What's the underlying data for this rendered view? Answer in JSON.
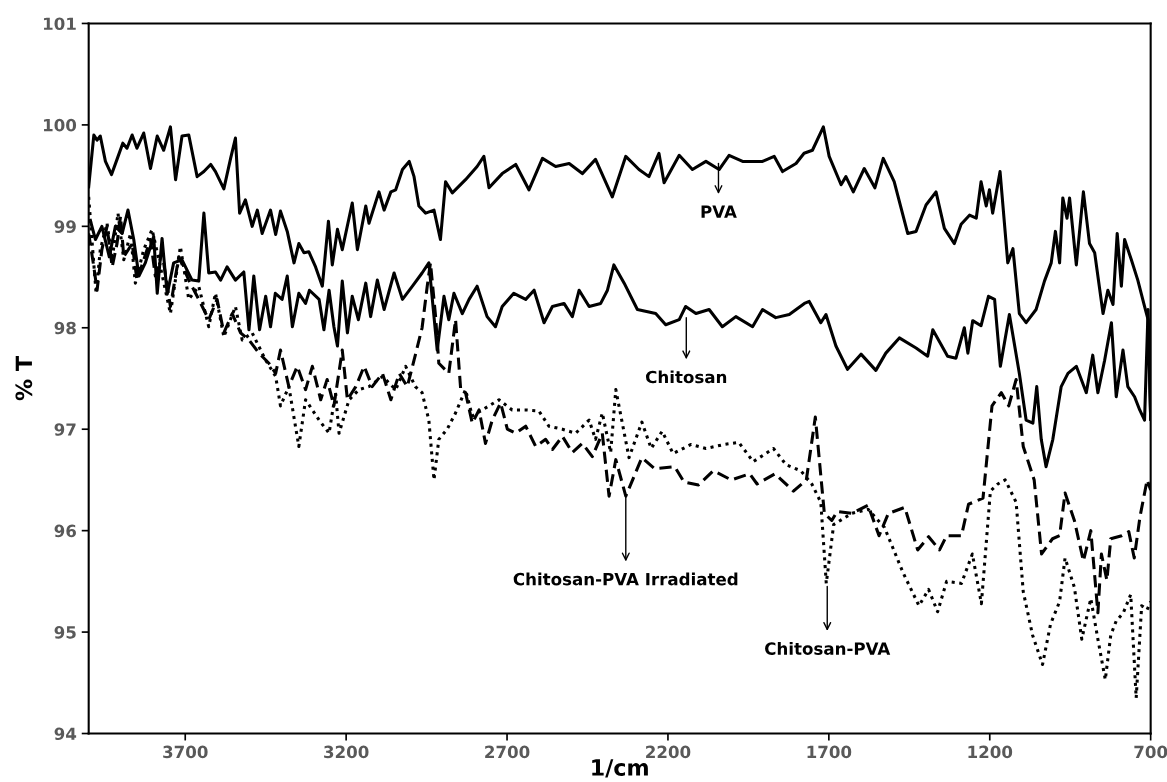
{
  "chart_data": {
    "type": "line",
    "xlabel": "1/cm",
    "ylabel": "% T",
    "xlim": [
      4000,
      700
    ],
    "xticks": [
      3700,
      3200,
      2700,
      2200,
      1700,
      1200,
      700
    ],
    "ylim": [
      94,
      101
    ],
    "yticks": [
      94,
      95,
      96,
      97,
      98,
      99,
      100,
      101
    ],
    "grid": false,
    "marker": "none",
    "series": [
      {
        "color": "#000000",
        "line_style": "solid",
        "x": [
          4000,
          3984,
          3974,
          3964,
          3948,
          3929,
          3912,
          3894,
          3881,
          3865,
          3850,
          3829,
          3808,
          3787,
          3767,
          3746,
          3730,
          3710,
          3689,
          3663,
          3642,
          3621,
          3606,
          3580,
          3559,
          3544,
          3531,
          3513,
          3492,
          3476,
          3461,
          3435,
          3419,
          3404,
          3383,
          3362,
          3347,
          3331,
          3316,
          3295,
          3274,
          3255,
          3243,
          3227,
          3212,
          3181,
          3165,
          3139,
          3129,
          3098,
          3082,
          3061,
          3046,
          3025,
          3004,
          2989,
          2974,
          2953,
          2927,
          2907,
          2891,
          2870,
          2829,
          2793,
          2772,
          2756,
          2715,
          2673,
          2632,
          2590,
          2549,
          2507,
          2466,
          2425,
          2373,
          2331,
          2290,
          2259,
          2228,
          2212,
          2165,
          2124,
          2082,
          2041,
          2010,
          1968,
          1906,
          1870,
          1844,
          1802,
          1777,
          1751,
          1717,
          1699,
          1662,
          1647,
          1624,
          1590,
          1557,
          1531,
          1497,
          1455,
          1429,
          1398,
          1367,
          1341,
          1310,
          1289,
          1263,
          1242,
          1227,
          1211,
          1201,
          1191,
          1168,
          1144,
          1128,
          1108,
          1087,
          1056,
          1030,
          1009,
          996,
          983,
          973,
          960,
          952,
          931,
          909,
          890,
          874,
          848,
          833,
          817,
          804,
          791,
          781,
          760,
          740,
          719,
          708,
          700
        ],
        "values": [
          99.39,
          99.9,
          99.85,
          99.89,
          99.64,
          99.51,
          99.66,
          99.82,
          99.77,
          99.9,
          99.77,
          99.92,
          99.57,
          99.89,
          99.75,
          99.98,
          99.46,
          99.89,
          99.9,
          99.49,
          99.54,
          99.61,
          99.54,
          99.37,
          99.67,
          99.87,
          99.13,
          99.26,
          99.0,
          99.16,
          98.93,
          99.16,
          98.92,
          99.15,
          98.95,
          98.64,
          98.83,
          98.74,
          98.75,
          98.6,
          98.41,
          99.05,
          98.62,
          98.97,
          98.77,
          99.23,
          98.77,
          99.2,
          99.03,
          99.34,
          99.16,
          99.34,
          99.36,
          99.56,
          99.64,
          99.49,
          99.2,
          99.13,
          99.16,
          98.87,
          99.44,
          99.33,
          99.46,
          99.59,
          99.69,
          99.38,
          99.52,
          99.61,
          99.36,
          99.67,
          99.59,
          99.62,
          99.52,
          99.66,
          99.29,
          99.69,
          99.56,
          99.49,
          99.72,
          99.43,
          99.7,
          99.56,
          99.64,
          99.56,
          99.7,
          99.64,
          99.64,
          99.69,
          99.54,
          99.62,
          99.72,
          99.75,
          99.98,
          99.69,
          99.41,
          99.49,
          99.34,
          99.57,
          99.38,
          99.67,
          99.44,
          98.93,
          98.95,
          99.21,
          99.34,
          98.98,
          98.83,
          99.02,
          99.11,
          99.08,
          99.44,
          99.2,
          99.36,
          99.13,
          99.54,
          98.64,
          98.78,
          98.14,
          98.05,
          98.18,
          98.46,
          98.64,
          98.95,
          98.64,
          99.28,
          99.08,
          99.28,
          98.62,
          99.34,
          98.83,
          98.74,
          98.14,
          98.37,
          98.23,
          98.93,
          98.41,
          98.87,
          98.67,
          98.47,
          98.21,
          98.08,
          97.1
        ]
      },
      {
        "color": "#000000",
        "line_style": "solid",
        "x": [
          3995,
          3979,
          3959,
          3936,
          3917,
          3896,
          3878,
          3860,
          3844,
          3824,
          3798,
          3787,
          3772,
          3756,
          3736,
          3710,
          3679,
          3658,
          3642,
          3627,
          3606,
          3590,
          3570,
          3544,
          3518,
          3502,
          3487,
          3469,
          3450,
          3435,
          3420,
          3399,
          3383,
          3367,
          3347,
          3326,
          3314,
          3284,
          3269,
          3253,
          3238,
          3227,
          3212,
          3196,
          3181,
          3162,
          3139,
          3124,
          3103,
          3082,
          3051,
          3025,
          2994,
          2964,
          2943,
          2917,
          2896,
          2881,
          2865,
          2839,
          2818,
          2793,
          2762,
          2736,
          2715,
          2679,
          2642,
          2616,
          2585,
          2559,
          2523,
          2497,
          2476,
          2445,
          2409,
          2388,
          2368,
          2336,
          2295,
          2238,
          2207,
          2165,
          2145,
          2113,
          2072,
          2031,
          1989,
          1937,
          1906,
          1865,
          1823,
          1776,
          1761,
          1725,
          1709,
          1678,
          1642,
          1600,
          1554,
          1523,
          1481,
          1429,
          1393,
          1377,
          1331,
          1305,
          1279,
          1268,
          1253,
          1227,
          1204,
          1185,
          1167,
          1139,
          1108,
          1087,
          1066,
          1054,
          1040,
          1025,
          1004,
          978,
          957,
          931,
          900,
          880,
          864,
          843,
          822,
          807,
          786,
          771,
          750,
          734,
          719,
          708,
          700
        ],
        "values": [
          99.06,
          98.87,
          99.0,
          98.7,
          99.0,
          98.93,
          99.16,
          98.87,
          98.51,
          98.64,
          98.9,
          98.34,
          98.88,
          98.33,
          98.64,
          98.67,
          98.47,
          98.46,
          99.13,
          98.54,
          98.55,
          98.47,
          98.6,
          98.47,
          98.55,
          97.98,
          98.51,
          97.98,
          98.31,
          98.01,
          98.34,
          98.28,
          98.51,
          98.01,
          98.34,
          98.24,
          98.37,
          98.28,
          97.98,
          98.37,
          98.01,
          97.82,
          98.46,
          97.95,
          98.31,
          98.08,
          98.44,
          98.11,
          98.47,
          98.18,
          98.54,
          98.28,
          98.41,
          98.54,
          98.64,
          97.78,
          98.31,
          98.08,
          98.34,
          98.14,
          98.28,
          98.41,
          98.11,
          98.01,
          98.21,
          98.34,
          98.28,
          98.37,
          98.05,
          98.21,
          98.24,
          98.11,
          98.37,
          98.21,
          98.24,
          98.37,
          98.62,
          98.44,
          98.18,
          98.14,
          98.03,
          98.08,
          98.21,
          98.14,
          98.18,
          98.01,
          98.11,
          98.01,
          98.18,
          98.1,
          98.13,
          98.24,
          98.26,
          98.05,
          98.13,
          97.82,
          97.59,
          97.74,
          97.58,
          97.75,
          97.9,
          97.8,
          97.72,
          97.98,
          97.72,
          97.7,
          98.0,
          97.75,
          98.07,
          98.02,
          98.31,
          98.28,
          97.62,
          98.13,
          97.55,
          97.09,
          97.06,
          97.42,
          96.9,
          96.63,
          96.9,
          97.42,
          97.55,
          97.62,
          97.36,
          97.73,
          97.36,
          97.68,
          98.05,
          97.32,
          97.78,
          97.42,
          97.32,
          97.19,
          97.09,
          98.18,
          97.1
        ]
      },
      {
        "color": "#000000",
        "line_style": "dashed",
        "x": [
          4000,
          3984,
          3974,
          3959,
          3943,
          3927,
          3912,
          3901,
          3891,
          3865,
          3850,
          3829,
          3808,
          3793,
          3772,
          3746,
          3720,
          3689,
          3658,
          3627,
          3601,
          3580,
          3554,
          3528,
          3502,
          3471,
          3440,
          3419,
          3404,
          3378,
          3352,
          3326,
          3305,
          3279,
          3259,
          3238,
          3212,
          3196,
          3170,
          3144,
          3119,
          3087,
          3061,
          3035,
          3010,
          2989,
          2964,
          2948,
          2938,
          2922,
          2912,
          2881,
          2860,
          2844,
          2829,
          2808,
          2787,
          2767,
          2746,
          2720,
          2699,
          2673,
          2642,
          2611,
          2580,
          2559,
          2528,
          2497,
          2466,
          2435,
          2404,
          2383,
          2362,
          2331,
          2281,
          2241,
          2179,
          2150,
          2105,
          2059,
          2003,
          1946,
          1923,
          1867,
          1810,
          1770,
          1742,
          1714,
          1691,
          1674,
          1629,
          1578,
          1544,
          1515,
          1464,
          1424,
          1390,
          1356,
          1334,
          1288,
          1266,
          1221,
          1193,
          1164,
          1141,
          1118,
          1096,
          1062,
          1039,
          1005,
          983,
          966,
          937,
          909,
          886,
          864,
          853,
          836,
          824,
          790,
          768,
          751,
          733,
          711,
          700
        ],
        "values": [
          98.93,
          98.6,
          98.37,
          98.77,
          99.0,
          98.6,
          98.83,
          99.1,
          98.7,
          98.83,
          98.47,
          98.67,
          98.87,
          98.51,
          98.74,
          98.21,
          98.7,
          98.47,
          98.28,
          98.08,
          98.28,
          97.95,
          98.14,
          97.95,
          97.88,
          97.75,
          97.65,
          97.55,
          97.78,
          97.42,
          97.62,
          97.39,
          97.62,
          97.29,
          97.49,
          97.23,
          97.78,
          97.29,
          97.42,
          97.62,
          97.42,
          97.55,
          97.29,
          97.55,
          97.42,
          97.68,
          98.0,
          98.41,
          98.64,
          98.11,
          97.65,
          97.55,
          98.08,
          97.39,
          97.36,
          97.06,
          97.19,
          96.86,
          97.09,
          97.26,
          97.0,
          96.96,
          97.03,
          96.83,
          96.9,
          96.8,
          96.93,
          96.77,
          96.86,
          96.73,
          96.96,
          96.34,
          96.7,
          96.34,
          96.72,
          96.61,
          96.63,
          96.48,
          96.45,
          96.59,
          96.5,
          96.56,
          96.46,
          96.56,
          96.39,
          96.5,
          97.12,
          96.17,
          96.1,
          96.19,
          96.17,
          96.25,
          95.95,
          96.17,
          96.23,
          95.81,
          95.94,
          95.81,
          95.95,
          95.95,
          96.26,
          96.32,
          97.23,
          97.36,
          97.23,
          97.49,
          96.83,
          96.5,
          95.77,
          95.92,
          95.95,
          96.37,
          96.1,
          95.7,
          96.0,
          95.19,
          95.77,
          95.51,
          95.92,
          95.95,
          95.99,
          95.73,
          96.14,
          96.5,
          96.4
        ]
      },
      {
        "color": "#000000",
        "line_style": "dotted",
        "x": [
          4000,
          3990,
          3977,
          3964,
          3943,
          3927,
          3909,
          3891,
          3870,
          3855,
          3829,
          3803,
          3782,
          3746,
          3715,
          3689,
          3658,
          3627,
          3606,
          3580,
          3544,
          3523,
          3492,
          3450,
          3419,
          3404,
          3378,
          3347,
          3326,
          3284,
          3253,
          3233,
          3222,
          3191,
          3160,
          3129,
          3087,
          3046,
          3015,
          2985,
          2964,
          2943,
          2927,
          2912,
          2886,
          2860,
          2829,
          2808,
          2777,
          2725,
          2684,
          2642,
          2601,
          2570,
          2528,
          2487,
          2445,
          2425,
          2404,
          2378,
          2362,
          2321,
          2281,
          2252,
          2218,
          2184,
          2128,
          2082,
          2025,
          1980,
          1935,
          1872,
          1833,
          1787,
          1753,
          1725,
          1708,
          1685,
          1629,
          1578,
          1527,
          1470,
          1420,
          1390,
          1362,
          1334,
          1288,
          1254,
          1226,
          1198,
          1175,
          1152,
          1118,
          1096,
          1067,
          1036,
          1011,
          983,
          966,
          937,
          914,
          886,
          864,
          841,
          824,
          807,
          785,
          762,
          745,
          728,
          711,
          700
        ],
        "values": [
          99.29,
          98.87,
          98.34,
          98.77,
          99.03,
          98.67,
          99.13,
          98.67,
          98.93,
          98.44,
          98.77,
          98.97,
          98.67,
          98.14,
          98.8,
          98.28,
          98.41,
          98.01,
          98.34,
          97.91,
          98.21,
          97.88,
          97.95,
          97.68,
          97.52,
          97.23,
          97.42,
          96.83,
          97.29,
          97.09,
          96.96,
          97.36,
          96.96,
          97.29,
          97.39,
          97.42,
          97.52,
          97.39,
          97.62,
          97.42,
          97.36,
          97.09,
          96.5,
          96.9,
          97.0,
          97.16,
          97.39,
          97.13,
          97.19,
          97.29,
          97.19,
          97.19,
          97.18,
          97.03,
          97.0,
          96.96,
          97.09,
          96.9,
          97.16,
          96.77,
          97.39,
          96.72,
          97.07,
          96.81,
          96.98,
          96.76,
          96.85,
          96.81,
          96.85,
          96.87,
          96.68,
          96.81,
          96.65,
          96.59,
          96.46,
          96.28,
          95.48,
          96.06,
          96.17,
          96.21,
          96.03,
          95.59,
          95.26,
          95.42,
          95.2,
          95.5,
          95.48,
          95.77,
          95.28,
          96.39,
          96.46,
          96.5,
          96.28,
          95.4,
          94.97,
          94.68,
          95.08,
          95.3,
          95.73,
          95.44,
          94.93,
          95.33,
          94.93,
          94.53,
          94.97,
          95.11,
          95.19,
          95.37,
          94.35,
          95.26,
          95.22,
          95.3
        ]
      }
    ],
    "annotations": [
      {
        "text": "PVA",
        "x": 2043,
        "y": 99.62
      },
      {
        "text": "Chitosan",
        "x": 2143,
        "y": 98.1
      },
      {
        "text": "Chitosan-PVA Irradiated",
        "x": 2331,
        "y": 96.34
      },
      {
        "text": "Chitosan-PVA",
        "x": 1705,
        "y": 95.45
      }
    ]
  }
}
